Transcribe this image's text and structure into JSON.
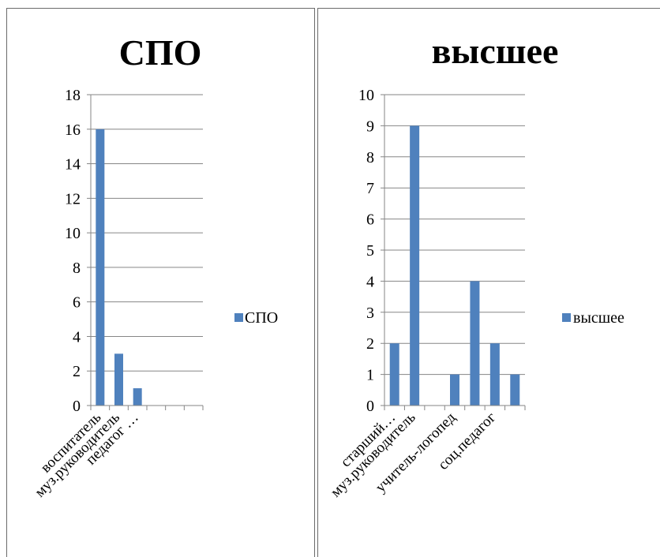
{
  "chart_data": [
    {
      "type": "bar",
      "title": "СПО",
      "categories": [
        "воспитатель",
        "муз.руководитель",
        "педагог …",
        "",
        "",
        ""
      ],
      "series": [
        {
          "name": "СПО",
          "values": [
            16,
            3,
            1,
            0,
            0,
            0
          ],
          "color": "#4f81bd"
        }
      ],
      "ylim": [
        0,
        18
      ],
      "yticks": [
        "0",
        "2",
        "4",
        "6",
        "8",
        "10",
        "12",
        "14",
        "16",
        "18"
      ],
      "grid": true,
      "legend": "right"
    },
    {
      "type": "bar",
      "title": "высшее",
      "categories": [
        "старший…",
        "муз.руководитель",
        "",
        "учитель-логопед",
        "",
        "соц.педагог",
        ""
      ],
      "series": [
        {
          "name": "высшее",
          "values": [
            2,
            9,
            0,
            1,
            4,
            2,
            1
          ],
          "color": "#4f81bd"
        }
      ],
      "ylim": [
        0,
        10
      ],
      "yticks": [
        "0",
        "1",
        "2",
        "3",
        "4",
        "5",
        "6",
        "7",
        "8",
        "9",
        "10"
      ],
      "grid": true,
      "legend": "right"
    }
  ]
}
